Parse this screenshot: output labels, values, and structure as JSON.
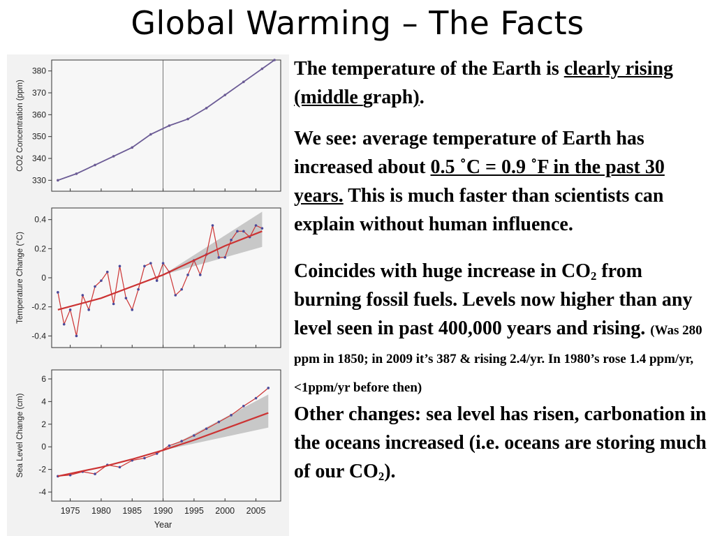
{
  "slide": {
    "title": "Global Warming – The Facts"
  },
  "text": {
    "p1": {
      "a": "The temperature of the Earth is ",
      "u1": "clearly rising (middle ",
      "b": "graph",
      "c": ")",
      "d": "."
    },
    "p2": {
      "a": "We see: average temperature of Earth has increased about ",
      "u": "0.5 ˚C = 0.9 ˚F in the past 30 years.",
      "b": " This is much faster than scientists can explain without human influence."
    },
    "p3": {
      "a": "Coincides with huge increase in CO",
      "sub": "2",
      "b": " from burning fossil fuels. Levels now higher than any level seen in past 400,000 years and rising. ",
      "small": "(Was 280 ppm in 1850; in 2009 it’s 387 & rising 2.4/yr. In 1980’s rose 1.4 ppm/yr, <1ppm/yr before then)"
    },
    "p4": {
      "a": "Other changes: sea level has risen, carbonation in the oceans increased (i.e. oceans are storing much of our CO",
      "sub": "2",
      "b": ")."
    }
  },
  "colors": {
    "observed": "#cc3333",
    "co2": "#6b5b95",
    "projection_band": "#9a9a9a",
    "blue_points": "#4a4a9a"
  },
  "chart_data": [
    {
      "type": "line",
      "panel": "co2",
      "ylabel": "CO2 Concentration (ppm)",
      "yticks": [
        330,
        340,
        350,
        360,
        370,
        380
      ],
      "ylim": [
        325,
        385
      ],
      "xlim": [
        1972,
        2009
      ],
      "series": [
        {
          "x": [
            1973,
            1976,
            1979,
            1982,
            1985,
            1988,
            1991,
            1994,
            1997,
            2000,
            2003,
            2006,
            2008
          ],
          "values": [
            330,
            333,
            337,
            341,
            345,
            351,
            355,
            358,
            363,
            369,
            375,
            381,
            385
          ]
        }
      ]
    },
    {
      "type": "line",
      "panel": "temperature",
      "ylabel": "Temperature Change (°C)",
      "yticks": [
        -0.4,
        -0.2,
        0,
        0.2,
        0.4
      ],
      "ylim": [
        -0.48,
        0.48
      ],
      "xlim": [
        1972,
        2009
      ],
      "series": [
        {
          "x": [
            1973,
            1974,
            1975,
            1976,
            1977,
            1978,
            1979,
            1980,
            1981,
            1982,
            1983,
            1984,
            1985,
            1986,
            1987,
            1988,
            1989,
            1990,
            1991,
            1992,
            1993,
            1994,
            1995,
            1996,
            1997,
            1998,
            1999,
            2000,
            2001,
            2002,
            2003,
            2004,
            2005,
            2006
          ],
          "values": [
            -0.1,
            -0.32,
            -0.22,
            -0.4,
            -0.12,
            -0.22,
            -0.06,
            -0.02,
            0.04,
            -0.18,
            0.08,
            -0.14,
            -0.22,
            -0.08,
            0.08,
            0.1,
            -0.02,
            0.1,
            0.04,
            -0.12,
            -0.08,
            0.02,
            0.12,
            0.02,
            0.16,
            0.36,
            0.14,
            0.14,
            0.26,
            0.32,
            0.32,
            0.28,
            0.36,
            0.34
          ]
        },
        {
          "x": [
            1973,
            1980,
            1985,
            1990,
            1995,
            2000,
            2006
          ],
          "values": [
            -0.22,
            -0.14,
            -0.06,
            0.02,
            0.12,
            0.22,
            0.32
          ]
        }
      ]
    },
    {
      "type": "line",
      "panel": "sea_level",
      "ylabel": "Sea Level Change (cm)",
      "yticks": [
        -4,
        -2,
        0,
        2,
        4,
        6
      ],
      "ylim": [
        -4.8,
        6.8
      ],
      "xlim": [
        1972,
        2009
      ],
      "series": [
        {
          "x": [
            1973,
            1975,
            1977,
            1979,
            1981,
            1983,
            1985,
            1987,
            1989,
            1991,
            1993,
            1995,
            1997,
            1999,
            2001,
            2003,
            2005,
            2007
          ],
          "values": [
            -2.6,
            -2.5,
            -2.2,
            -2.4,
            -1.6,
            -1.8,
            -1.2,
            -1.0,
            -0.6,
            0.1,
            0.5,
            1.0,
            1.6,
            2.2,
            2.8,
            3.6,
            4.3,
            5.2
          ]
        },
        {
          "x": [
            1973,
            1980,
            1985,
            1990,
            1995,
            2000,
            2007
          ],
          "values": [
            -2.6,
            -1.8,
            -1.1,
            -0.3,
            0.6,
            1.6,
            3.0
          ]
        }
      ]
    }
  ],
  "xaxis": {
    "label": "Year",
    "ticks": [
      "1975",
      "1980",
      "1985",
      "1990",
      "1995",
      "2000",
      "2005"
    ],
    "tick_values": [
      1975,
      1980,
      1985,
      1990,
      1995,
      2000,
      2005
    ]
  }
}
